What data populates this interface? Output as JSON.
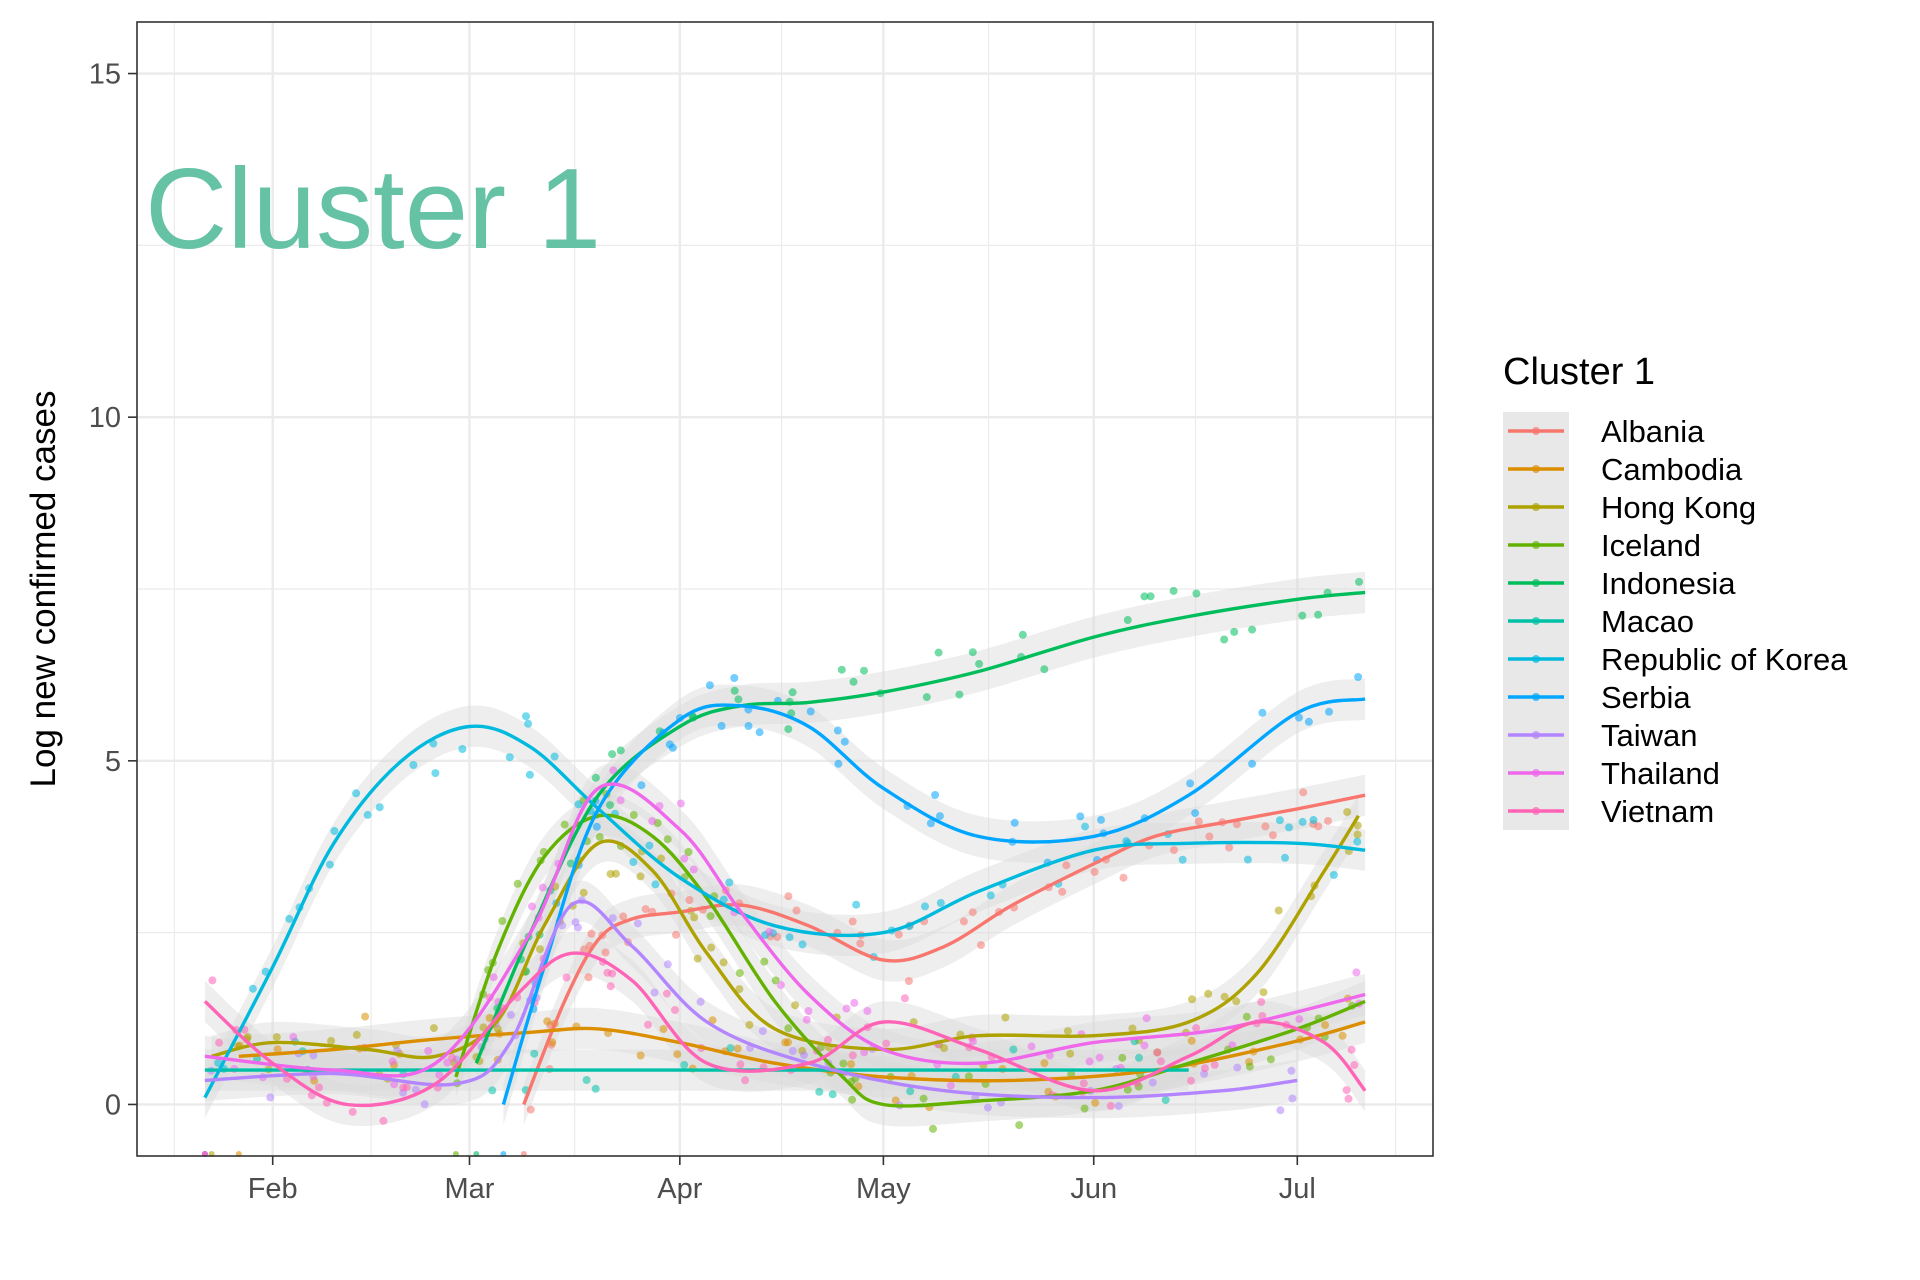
{
  "chart_data": {
    "type": "scatter",
    "subtype": "scatter-with-loess-smooth",
    "overlay_label": "Cluster 1",
    "ylabel": "Log new confirmed cases",
    "xlabel": "",
    "x_ticks": [
      "Feb",
      "Mar",
      "Apr",
      "May",
      "Jun",
      "Jul"
    ],
    "x_tick_dates": [
      "2020-02-01",
      "2020-03-01",
      "2020-04-01",
      "2020-05-01",
      "2020-06-01",
      "2020-07-01"
    ],
    "xlim": [
      "2020-01-12",
      "2020-07-21"
    ],
    "y_ticks": [
      0,
      5,
      10,
      15
    ],
    "ylim": [
      -0.75,
      15.75
    ],
    "grid": true,
    "legend": {
      "title": "Cluster 1",
      "position": "right"
    },
    "colors": {
      "overlay_label": "#66C2A5",
      "grid": "#EBEBEB",
      "panel_border": "#333333",
      "ribbon": "#D9D9D9"
    },
    "series": [
      {
        "name": "Albania",
        "color": "#F8766D",
        "points": [
          [
            "2020-03-09",
            0.0
          ],
          [
            "2020-03-15",
            1.5
          ],
          [
            "2020-03-20",
            2.4
          ],
          [
            "2020-03-25",
            2.7
          ],
          [
            "2020-04-01",
            2.8
          ],
          [
            "2020-04-10",
            2.9
          ],
          [
            "2020-04-20",
            2.6
          ],
          [
            "2020-05-01",
            2.1
          ],
          [
            "2020-05-10",
            2.3
          ],
          [
            "2020-05-20",
            2.9
          ],
          [
            "2020-06-01",
            3.5
          ],
          [
            "2020-06-10",
            3.9
          ],
          [
            "2020-06-20",
            4.1
          ],
          [
            "2020-07-01",
            4.3
          ],
          [
            "2020-07-11",
            4.5
          ]
        ]
      },
      {
        "name": "Cambodia",
        "color": "#DB8E00",
        "points": [
          [
            "2020-01-27",
            0.7
          ],
          [
            "2020-02-10",
            0.8
          ],
          [
            "2020-02-25",
            0.95
          ],
          [
            "2020-03-10",
            1.05
          ],
          [
            "2020-03-20",
            1.1
          ],
          [
            "2020-04-01",
            0.9
          ],
          [
            "2020-04-15",
            0.6
          ],
          [
            "2020-05-01",
            0.4
          ],
          [
            "2020-05-20",
            0.35
          ],
          [
            "2020-06-10",
            0.5
          ],
          [
            "2020-06-30",
            0.9
          ],
          [
            "2020-07-11",
            1.2
          ]
        ]
      },
      {
        "name": "Hong Kong",
        "color": "#AEA200",
        "points": [
          [
            "2020-01-23",
            0.7
          ],
          [
            "2020-02-01",
            0.9
          ],
          [
            "2020-02-15",
            0.8
          ],
          [
            "2020-02-25",
            0.7
          ],
          [
            "2020-03-05",
            1.2
          ],
          [
            "2020-03-12",
            2.6
          ],
          [
            "2020-03-20",
            3.8
          ],
          [
            "2020-03-28",
            3.4
          ],
          [
            "2020-04-05",
            2.2
          ],
          [
            "2020-04-15",
            1.1
          ],
          [
            "2020-05-01",
            0.8
          ],
          [
            "2020-05-15",
            1.0
          ],
          [
            "2020-06-01",
            1.0
          ],
          [
            "2020-06-15",
            1.2
          ],
          [
            "2020-06-25",
            1.9
          ],
          [
            "2020-07-05",
            3.4
          ],
          [
            "2020-07-10",
            4.2
          ]
        ]
      },
      {
        "name": "Iceland",
        "color": "#64B200",
        "points": [
          [
            "2020-02-28",
            0.4
          ],
          [
            "2020-03-05",
            2.2
          ],
          [
            "2020-03-12",
            3.6
          ],
          [
            "2020-03-20",
            4.2
          ],
          [
            "2020-03-28",
            3.9
          ],
          [
            "2020-04-05",
            3.0
          ],
          [
            "2020-04-15",
            1.5
          ],
          [
            "2020-04-25",
            0.4
          ],
          [
            "2020-05-01",
            0.0
          ],
          [
            "2020-05-15",
            0.05
          ],
          [
            "2020-06-01",
            0.2
          ],
          [
            "2020-06-15",
            0.6
          ],
          [
            "2020-07-01",
            1.1
          ],
          [
            "2020-07-11",
            1.5
          ]
        ]
      },
      {
        "name": "Indonesia",
        "color": "#00BD5C",
        "points": [
          [
            "2020-03-02",
            0.6
          ],
          [
            "2020-03-10",
            2.5
          ],
          [
            "2020-03-20",
            4.5
          ],
          [
            "2020-04-01",
            5.5
          ],
          [
            "2020-04-10",
            5.8
          ],
          [
            "2020-04-20",
            5.85
          ],
          [
            "2020-05-01",
            6.0
          ],
          [
            "2020-05-15",
            6.3
          ],
          [
            "2020-06-01",
            6.8
          ],
          [
            "2020-06-15",
            7.1
          ],
          [
            "2020-07-01",
            7.35
          ],
          [
            "2020-07-11",
            7.45
          ]
        ]
      },
      {
        "name": "Macao",
        "color": "#00C1A7",
        "points": [
          [
            "2020-01-22",
            0.5
          ],
          [
            "2020-02-15",
            0.5
          ],
          [
            "2020-03-15",
            0.5
          ],
          [
            "2020-04-15",
            0.5
          ],
          [
            "2020-05-15",
            0.5
          ],
          [
            "2020-06-15",
            0.5
          ]
        ]
      },
      {
        "name": "Republic of Korea",
        "color": "#00BADE",
        "points": [
          [
            "2020-01-22",
            0.1
          ],
          [
            "2020-02-01",
            2.0
          ],
          [
            "2020-02-10",
            3.8
          ],
          [
            "2020-02-20",
            5.0
          ],
          [
            "2020-03-01",
            5.5
          ],
          [
            "2020-03-10",
            5.2
          ],
          [
            "2020-03-20",
            4.3
          ],
          [
            "2020-04-01",
            3.3
          ],
          [
            "2020-04-15",
            2.6
          ],
          [
            "2020-05-01",
            2.5
          ],
          [
            "2020-05-15",
            3.1
          ],
          [
            "2020-06-01",
            3.7
          ],
          [
            "2020-06-15",
            3.8
          ],
          [
            "2020-07-01",
            3.8
          ],
          [
            "2020-07-11",
            3.7
          ]
        ]
      },
      {
        "name": "Serbia",
        "color": "#00A6FF",
        "points": [
          [
            "2020-03-06",
            0.0
          ],
          [
            "2020-03-12",
            2.0
          ],
          [
            "2020-03-20",
            4.3
          ],
          [
            "2020-04-01",
            5.6
          ],
          [
            "2020-04-10",
            5.8
          ],
          [
            "2020-04-20",
            5.5
          ],
          [
            "2020-05-01",
            4.6
          ],
          [
            "2020-05-15",
            3.9
          ],
          [
            "2020-06-01",
            3.9
          ],
          [
            "2020-06-15",
            4.5
          ],
          [
            "2020-07-01",
            5.7
          ],
          [
            "2020-07-11",
            5.9
          ]
        ]
      },
      {
        "name": "Taiwan",
        "color": "#B385FF",
        "points": [
          [
            "2020-01-22",
            0.35
          ],
          [
            "2020-02-10",
            0.45
          ],
          [
            "2020-02-28",
            0.3
          ],
          [
            "2020-03-07",
            0.9
          ],
          [
            "2020-03-16",
            2.9
          ],
          [
            "2020-03-25",
            2.3
          ],
          [
            "2020-04-05",
            1.2
          ],
          [
            "2020-04-20",
            0.6
          ],
          [
            "2020-05-10",
            0.2
          ],
          [
            "2020-06-01",
            0.1
          ],
          [
            "2020-06-20",
            0.2
          ],
          [
            "2020-07-01",
            0.35
          ]
        ]
      },
      {
        "name": "Thailand",
        "color": "#EF67EB",
        "points": [
          [
            "2020-01-22",
            0.7
          ],
          [
            "2020-02-10",
            0.5
          ],
          [
            "2020-02-25",
            0.6
          ],
          [
            "2020-03-10",
            2.5
          ],
          [
            "2020-03-20",
            4.6
          ],
          [
            "2020-04-01",
            4.0
          ],
          [
            "2020-04-10",
            2.8
          ],
          [
            "2020-04-20",
            1.6
          ],
          [
            "2020-05-01",
            0.8
          ],
          [
            "2020-05-15",
            0.6
          ],
          [
            "2020-06-01",
            0.9
          ],
          [
            "2020-06-20",
            1.1
          ],
          [
            "2020-07-11",
            1.6
          ]
        ]
      },
      {
        "name": "Vietnam",
        "color": "#FF63B6",
        "points": [
          [
            "2020-01-22",
            1.5
          ],
          [
            "2020-02-01",
            0.6
          ],
          [
            "2020-02-12",
            0.0
          ],
          [
            "2020-02-25",
            0.3
          ],
          [
            "2020-03-08",
            1.6
          ],
          [
            "2020-03-16",
            2.2
          ],
          [
            "2020-03-25",
            1.8
          ],
          [
            "2020-04-05",
            0.6
          ],
          [
            "2020-04-20",
            0.6
          ],
          [
            "2020-05-01",
            1.2
          ],
          [
            "2020-05-15",
            0.8
          ],
          [
            "2020-06-01",
            0.2
          ],
          [
            "2020-06-15",
            0.7
          ],
          [
            "2020-06-25",
            1.2
          ],
          [
            "2020-07-05",
            0.9
          ],
          [
            "2020-07-11",
            0.2
          ]
        ]
      }
    ]
  }
}
